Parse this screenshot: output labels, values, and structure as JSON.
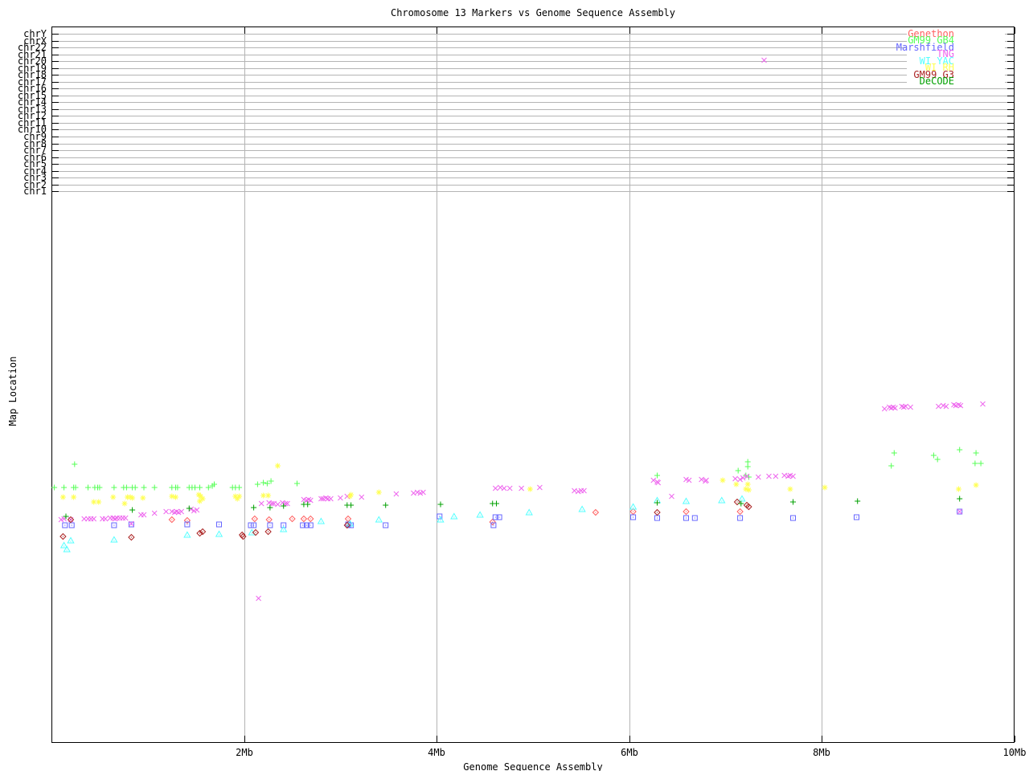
{
  "title": "Chromosome 13 Markers vs Genome Sequence Assembly",
  "x_axis": {
    "label": "Genome Sequence Assembly",
    "tick_labels": [
      "2Mb",
      "4Mb",
      "6Mb",
      "8Mb",
      "10Mb"
    ],
    "tick_values_mb": [
      2,
      4,
      6,
      8,
      10
    ],
    "range_mb": [
      0,
      10
    ]
  },
  "y_axis": {
    "label": "Map Location",
    "tick_labels": [
      "chrY",
      "chrX",
      "chr22",
      "chr21",
      "chr20",
      "chr19",
      "chr18",
      "chr17",
      "chr16",
      "chr15",
      "chr14",
      "chr13",
      "chr12",
      "chr11",
      "chr10",
      "chr9",
      "chr8",
      "chr7",
      "chr6",
      "chr5",
      "chr4",
      "chr3",
      "chr2",
      "chr1"
    ]
  },
  "legend": {
    "entries": [
      "Genethon",
      "GM99 GB4",
      "Marshfield",
      "TNG",
      "WI YAC",
      "WI RH",
      "GM99 G3",
      "DeCODE"
    ]
  },
  "chart_data": {
    "type": "scatter",
    "title": "Chromosome 13 Markers vs Genome Sequence Assembly",
    "xlabel": "Genome Sequence Assembly",
    "ylabel": "Map Location",
    "x_unit": "Mb",
    "xlim": [
      0,
      10
    ],
    "grid": true,
    "legend_position": "top-right",
    "note": "x values in Mb read from axis; y values are vertical screen positions (px) since the Map Location axis shows chromosome names (chrY..chr1) at top and no numeric scale",
    "series": [
      {
        "name": "Genethon",
        "color": "#ff6060",
        "marker": "diamond-dot",
        "points": [
          [
            1.25,
            647
          ],
          [
            1.41,
            648
          ],
          [
            2.11,
            646
          ],
          [
            2.26,
            647
          ],
          [
            2.5,
            646
          ],
          [
            2.62,
            646
          ],
          [
            2.69,
            646
          ],
          [
            3.08,
            646
          ],
          [
            4.58,
            650
          ],
          [
            5.65,
            638
          ],
          [
            6.04,
            637
          ],
          [
            6.59,
            637
          ],
          [
            7.15,
            637
          ]
        ]
      },
      {
        "name": "GM99 GB4",
        "color": "#55ff55",
        "marker": "plus",
        "points": [
          [
            0.03,
            607
          ],
          [
            0.13,
            607
          ],
          [
            0.23,
            607
          ],
          [
            0.25,
            607
          ],
          [
            0.24,
            578
          ],
          [
            0.38,
            607
          ],
          [
            0.45,
            607
          ],
          [
            0.48,
            607
          ],
          [
            0.5,
            607
          ],
          [
            0.65,
            607
          ],
          [
            0.75,
            607
          ],
          [
            0.78,
            607
          ],
          [
            0.84,
            607
          ],
          [
            0.87,
            607
          ],
          [
            0.96,
            607
          ],
          [
            1.07,
            607
          ],
          [
            1.25,
            607
          ],
          [
            1.29,
            607
          ],
          [
            1.31,
            607
          ],
          [
            1.43,
            607
          ],
          [
            1.46,
            607
          ],
          [
            1.49,
            607
          ],
          [
            1.54,
            607
          ],
          [
            1.63,
            607
          ],
          [
            1.67,
            605
          ],
          [
            1.69,
            603
          ],
          [
            1.88,
            607
          ],
          [
            1.91,
            607
          ],
          [
            1.95,
            607
          ],
          [
            2.14,
            603
          ],
          [
            2.2,
            601
          ],
          [
            2.24,
            602
          ],
          [
            2.28,
            599
          ],
          [
            2.55,
            602
          ],
          [
            6.29,
            592
          ],
          [
            7.13,
            586
          ],
          [
            7.23,
            575
          ],
          [
            7.23,
            581
          ],
          [
            7.21,
            592
          ],
          [
            7.24,
            594
          ],
          [
            8.72,
            580
          ],
          [
            8.75,
            564
          ],
          [
            9.16,
            567
          ],
          [
            9.2,
            572
          ],
          [
            9.43,
            560
          ],
          [
            9.6,
            564
          ],
          [
            9.59,
            577
          ],
          [
            9.65,
            577
          ]
        ]
      },
      {
        "name": "Marshfield",
        "color": "#6666ff",
        "marker": "square-dot",
        "points": [
          [
            0.14,
            654
          ],
          [
            0.21,
            654
          ],
          [
            0.65,
            654
          ],
          [
            0.83,
            653
          ],
          [
            1.41,
            653
          ],
          [
            1.74,
            653
          ],
          [
            2.07,
            654
          ],
          [
            2.1,
            654
          ],
          [
            2.27,
            654
          ],
          [
            2.41,
            654
          ],
          [
            2.61,
            654
          ],
          [
            2.65,
            654
          ],
          [
            2.69,
            654
          ],
          [
            3.08,
            653
          ],
          [
            3.11,
            654
          ],
          [
            3.47,
            654
          ],
          [
            4.03,
            643
          ],
          [
            4.59,
            654
          ],
          [
            4.61,
            644
          ],
          [
            4.65,
            644
          ],
          [
            6.04,
            644
          ],
          [
            6.29,
            645
          ],
          [
            6.59,
            645
          ],
          [
            6.68,
            645
          ],
          [
            7.15,
            645
          ],
          [
            7.7,
            645
          ],
          [
            8.36,
            644
          ],
          [
            9.43,
            637
          ]
        ]
      },
      {
        "name": "TNG",
        "color": "#ee66ee",
        "marker": "cross",
        "points": [
          [
            0.1,
            647
          ],
          [
            0.13,
            646
          ],
          [
            0.2,
            647
          ],
          [
            0.34,
            646
          ],
          [
            0.38,
            646
          ],
          [
            0.41,
            646
          ],
          [
            0.44,
            646
          ],
          [
            0.53,
            646
          ],
          [
            0.56,
            646
          ],
          [
            0.61,
            645
          ],
          [
            0.64,
            645
          ],
          [
            0.66,
            646
          ],
          [
            0.68,
            645
          ],
          [
            0.71,
            645
          ],
          [
            0.74,
            645
          ],
          [
            0.77,
            645
          ],
          [
            0.83,
            652
          ],
          [
            0.93,
            641
          ],
          [
            0.96,
            641
          ],
          [
            1.07,
            639
          ],
          [
            1.19,
            637
          ],
          [
            1.25,
            637
          ],
          [
            1.28,
            638
          ],
          [
            1.3,
            637
          ],
          [
            1.32,
            638
          ],
          [
            1.35,
            637
          ],
          [
            1.45,
            634
          ],
          [
            1.48,
            636
          ],
          [
            1.51,
            635
          ],
          [
            2.18,
            627
          ],
          [
            2.26,
            626
          ],
          [
            2.29,
            627
          ],
          [
            2.31,
            627
          ],
          [
            2.35,
            628
          ],
          [
            2.4,
            626
          ],
          [
            2.43,
            627
          ],
          [
            2.45,
            627
          ],
          [
            2.62,
            622
          ],
          [
            2.65,
            623
          ],
          [
            2.67,
            622
          ],
          [
            2.69,
            623
          ],
          [
            2.8,
            621
          ],
          [
            2.82,
            621
          ],
          [
            2.85,
            620
          ],
          [
            2.87,
            621
          ],
          [
            2.9,
            621
          ],
          [
            3.0,
            620
          ],
          [
            3.07,
            618
          ],
          [
            3.22,
            619
          ],
          [
            3.58,
            615
          ],
          [
            3.76,
            614
          ],
          [
            3.8,
            613
          ],
          [
            3.83,
            614
          ],
          [
            3.86,
            613
          ],
          [
            4.61,
            608
          ],
          [
            4.66,
            607
          ],
          [
            4.7,
            608
          ],
          [
            4.76,
            608
          ],
          [
            4.88,
            608
          ],
          [
            5.07,
            607
          ],
          [
            5.43,
            611
          ],
          [
            5.47,
            612
          ],
          [
            5.5,
            611
          ],
          [
            5.53,
            611
          ],
          [
            6.25,
            598
          ],
          [
            6.29,
            600
          ],
          [
            6.3,
            601
          ],
          [
            6.44,
            618
          ],
          [
            6.59,
            597
          ],
          [
            6.62,
            598
          ],
          [
            6.75,
            597
          ],
          [
            6.79,
            599
          ],
          [
            6.8,
            598
          ],
          [
            7.1,
            596
          ],
          [
            7.15,
            597
          ],
          [
            7.18,
            595
          ],
          [
            7.22,
            593
          ],
          [
            7.34,
            594
          ],
          [
            7.45,
            593
          ],
          [
            7.52,
            593
          ],
          [
            7.61,
            592
          ],
          [
            7.65,
            593
          ],
          [
            7.67,
            592
          ],
          [
            7.7,
            593
          ],
          [
            8.65,
            509
          ],
          [
            8.7,
            507
          ],
          [
            8.72,
            508
          ],
          [
            8.74,
            507
          ],
          [
            8.76,
            508
          ],
          [
            8.83,
            506
          ],
          [
            8.85,
            507
          ],
          [
            8.87,
            506
          ],
          [
            8.92,
            507
          ],
          [
            9.21,
            506
          ],
          [
            9.26,
            505
          ],
          [
            9.29,
            506
          ],
          [
            9.37,
            504
          ],
          [
            9.39,
            505
          ],
          [
            9.42,
            504
          ],
          [
            9.44,
            505
          ],
          [
            9.67,
            503
          ],
          [
            7.4,
            75
          ],
          [
            2.15,
            745
          ],
          [
            9.43,
            637
          ]
        ]
      },
      {
        "name": "WI YAC",
        "color": "#55ffff",
        "marker": "triangle-dot",
        "points": [
          [
            0.13,
            679
          ],
          [
            0.16,
            684
          ],
          [
            0.2,
            673
          ],
          [
            0.65,
            672
          ],
          [
            1.41,
            666
          ],
          [
            1.74,
            665
          ],
          [
            2.08,
            663
          ],
          [
            2.41,
            659
          ],
          [
            2.8,
            649
          ],
          [
            3.1,
            652
          ],
          [
            3.4,
            647
          ],
          [
            4.04,
            647
          ],
          [
            4.18,
            643
          ],
          [
            4.45,
            641
          ],
          [
            4.96,
            638
          ],
          [
            5.51,
            634
          ],
          [
            6.04,
            631
          ],
          [
            6.29,
            623
          ],
          [
            6.59,
            624
          ],
          [
            6.96,
            623
          ],
          [
            7.17,
            621
          ]
        ]
      },
      {
        "name": "WI RH",
        "color": "#ffff55",
        "marker": "star",
        "points": [
          [
            0.12,
            619
          ],
          [
            0.23,
            619
          ],
          [
            0.44,
            625
          ],
          [
            0.49,
            625
          ],
          [
            0.64,
            619
          ],
          [
            0.76,
            627
          ],
          [
            0.79,
            619
          ],
          [
            0.82,
            619
          ],
          [
            0.84,
            620
          ],
          [
            0.95,
            620
          ],
          [
            1.25,
            618
          ],
          [
            1.29,
            619
          ],
          [
            1.53,
            616
          ],
          [
            1.55,
            618
          ],
          [
            1.57,
            621
          ],
          [
            1.54,
            624
          ],
          [
            1.91,
            618
          ],
          [
            1.95,
            618
          ],
          [
            1.93,
            621
          ],
          [
            2.2,
            617
          ],
          [
            2.25,
            617
          ],
          [
            2.35,
            580
          ],
          [
            3.1,
            618
          ],
          [
            3.11,
            616
          ],
          [
            3.4,
            613
          ],
          [
            4.97,
            609
          ],
          [
            6.97,
            598
          ],
          [
            7.11,
            603
          ],
          [
            7.23,
            603
          ],
          [
            7.21,
            609
          ],
          [
            7.24,
            610
          ],
          [
            7.67,
            609
          ],
          [
            8.03,
            607
          ],
          [
            9.42,
            609
          ],
          [
            9.6,
            604
          ]
        ]
      },
      {
        "name": "GM99 G3",
        "color": "#aa2222",
        "marker": "diamond-dot",
        "points": [
          [
            0.12,
            668
          ],
          [
            0.2,
            647
          ],
          [
            0.83,
            669
          ],
          [
            1.54,
            664
          ],
          [
            1.57,
            662
          ],
          [
            1.98,
            666
          ],
          [
            1.99,
            668
          ],
          [
            2.12,
            663
          ],
          [
            2.25,
            662
          ],
          [
            3.07,
            654
          ],
          [
            6.29,
            638
          ],
          [
            7.12,
            625
          ],
          [
            7.22,
            629
          ],
          [
            7.24,
            631
          ]
        ]
      },
      {
        "name": "DeCODE",
        "color": "#00a000",
        "marker": "plus",
        "points": [
          [
            0.15,
            643
          ],
          [
            0.84,
            635
          ],
          [
            1.43,
            633
          ],
          [
            2.1,
            632
          ],
          [
            2.27,
            632
          ],
          [
            2.41,
            630
          ],
          [
            2.62,
            628
          ],
          [
            2.66,
            628
          ],
          [
            3.07,
            629
          ],
          [
            3.11,
            629
          ],
          [
            3.47,
            629
          ],
          [
            4.04,
            628
          ],
          [
            4.58,
            627
          ],
          [
            4.62,
            627
          ],
          [
            6.29,
            626
          ],
          [
            7.16,
            627
          ],
          [
            7.7,
            625
          ],
          [
            8.37,
            624
          ],
          [
            9.43,
            621
          ]
        ]
      }
    ]
  }
}
